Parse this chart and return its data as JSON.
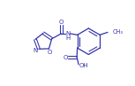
{
  "bg_color": "#ffffff",
  "line_color": "#3333aa",
  "line_width": 0.9,
  "font_size": 5.0,
  "text_color": "#3333aa"
}
